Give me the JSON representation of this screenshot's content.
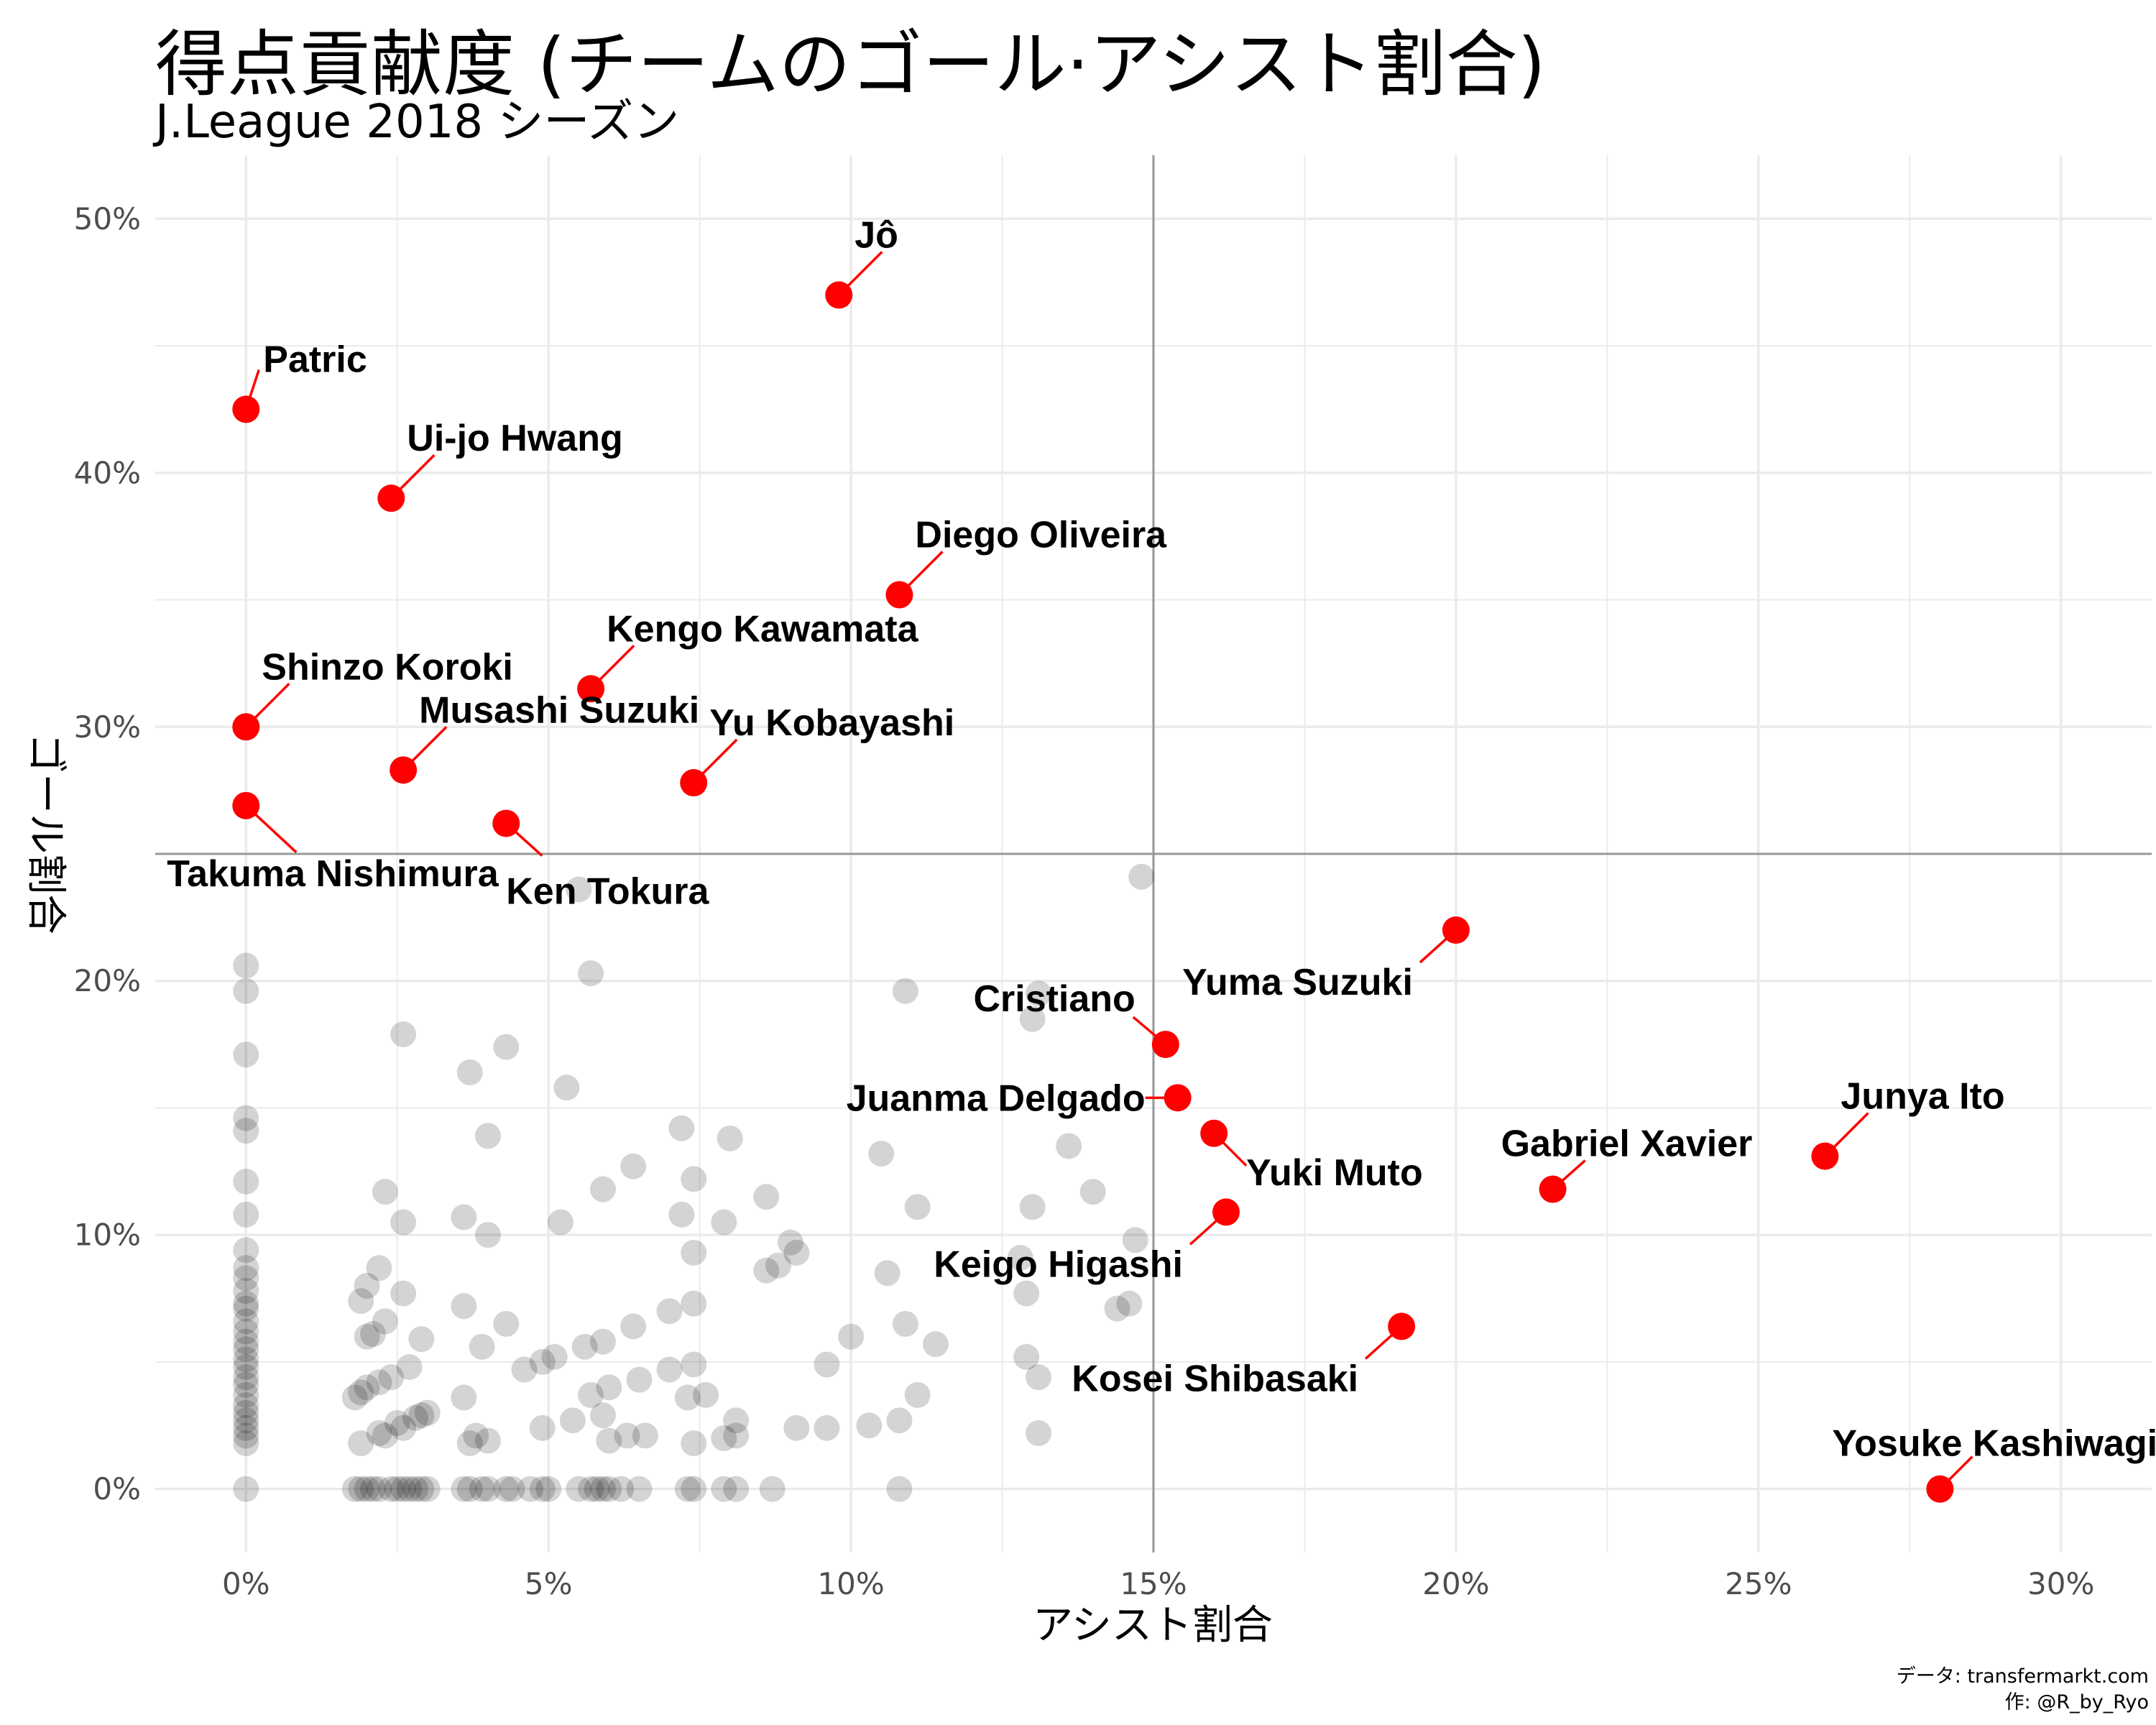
{
  "title": "得点貢献度 (チームのゴール·アシスト割合)",
  "subtitle": "J.League 2018 シーズン",
  "caption": {
    "line1": "データ: transfermarkt.com",
    "line2": "作: @R_by_Ryo"
  },
  "colors": {
    "highlight": "#ff0000",
    "background_points": "#000000",
    "grid": "#ebebeb",
    "reference_line": "#999999"
  },
  "chart_data": {
    "type": "scatter",
    "title": "得点貢献度 (チームのゴール·アシスト割合)",
    "subtitle": "J.League 2018 シーズン",
    "xlabel": "アシスト割合",
    "ylabel": "ゴール割合",
    "xlim": [
      -1.5,
      31.5
    ],
    "ylim": [
      -2.5,
      52.5
    ],
    "x_ticks": [
      0,
      5,
      10,
      15,
      20,
      25,
      30
    ],
    "x_tick_labels": [
      "0%",
      "5%",
      "10%",
      "15%",
      "20%",
      "25%",
      "30%"
    ],
    "y_ticks": [
      0,
      10,
      20,
      30,
      40,
      50
    ],
    "y_tick_labels": [
      "0%",
      "10%",
      "20%",
      "30%",
      "40%",
      "50%"
    ],
    "grid": true,
    "reference_lines": {
      "x": 15,
      "y": 25
    },
    "highlighted": [
      {
        "name": "Jô",
        "x": 9.8,
        "y": 47.0,
        "label_pos": "upper-right"
      },
      {
        "name": "Patric",
        "x": 0.0,
        "y": 42.5,
        "label_pos": "upper-right"
      },
      {
        "name": "Ui-jo Hwang",
        "x": 2.4,
        "y": 39.0,
        "label_pos": "upper-right"
      },
      {
        "name": "Diego Oliveira",
        "x": 10.8,
        "y": 35.2,
        "label_pos": "upper-right"
      },
      {
        "name": "Kengo Kawamata",
        "x": 5.7,
        "y": 31.5,
        "label_pos": "upper-right"
      },
      {
        "name": "Shinzo Koroki",
        "x": 0.0,
        "y": 30.0,
        "label_pos": "upper-right"
      },
      {
        "name": "Musashi Suzuki",
        "x": 2.6,
        "y": 28.3,
        "label_pos": "upper-right"
      },
      {
        "name": "Yu Kobayashi",
        "x": 7.4,
        "y": 27.8,
        "label_pos": "upper-right"
      },
      {
        "name": "Takuma Nishimura",
        "x": 0.0,
        "y": 26.9,
        "label_pos": "lower-right"
      },
      {
        "name": "Ken Tokura",
        "x": 4.3,
        "y": 26.2,
        "label_pos": "lower-right"
      },
      {
        "name": "Yuma Suzuki",
        "x": 20.0,
        "y": 22.0,
        "label_pos": "lower-left"
      },
      {
        "name": "Cristiano",
        "x": 15.2,
        "y": 17.5,
        "label_pos": "upper-left"
      },
      {
        "name": "Juanma Delgado",
        "x": 15.4,
        "y": 15.4,
        "label_pos": "left"
      },
      {
        "name": "Yuki Muto",
        "x": 16.0,
        "y": 14.0,
        "label_pos": "lower-right"
      },
      {
        "name": "Keigo Higashi",
        "x": 16.2,
        "y": 10.9,
        "label_pos": "lower-left"
      },
      {
        "name": "Kosei Shibasaki",
        "x": 19.1,
        "y": 6.4,
        "label_pos": "lower-left"
      },
      {
        "name": "Gabriel Xavier",
        "x": 21.6,
        "y": 11.8,
        "label_pos": "upper-right"
      },
      {
        "name": "Junya Ito",
        "x": 26.1,
        "y": 13.1,
        "label_pos": "upper-right"
      },
      {
        "name": "Yosuke Kashiwagi",
        "x": 28.0,
        "y": 0.0,
        "label_pos": "upper-right"
      }
    ],
    "others": [
      [
        0,
        20.6
      ],
      [
        0,
        19.6
      ],
      [
        0,
        17.1
      ],
      [
        0,
        14.6
      ],
      [
        0,
        14.1
      ],
      [
        0,
        12.1
      ],
      [
        0,
        10.8
      ],
      [
        0,
        9.4
      ],
      [
        0,
        8.7
      ],
      [
        0,
        8.3
      ],
      [
        0,
        7.8
      ],
      [
        0,
        7.3
      ],
      [
        0,
        7.1
      ],
      [
        0,
        6.6
      ],
      [
        0,
        6.2
      ],
      [
        0,
        5.8
      ],
      [
        0,
        5.5
      ],
      [
        0,
        5.1
      ],
      [
        0,
        4.8
      ],
      [
        0,
        4.4
      ],
      [
        0,
        4.1
      ],
      [
        0,
        3.7
      ],
      [
        0,
        3.3
      ],
      [
        0,
        3.0
      ],
      [
        0,
        2.7
      ],
      [
        0,
        2.4
      ],
      [
        0,
        2.1
      ],
      [
        0,
        1.8
      ],
      [
        0,
        0
      ],
      [
        5.5,
        23.6
      ],
      [
        5.7,
        20.3
      ],
      [
        2.6,
        17.9
      ],
      [
        3.7,
        16.4
      ],
      [
        4.3,
        17.4
      ],
      [
        5.3,
        15.8
      ],
      [
        4.0,
        13.9
      ],
      [
        2.3,
        11.7
      ],
      [
        2.6,
        10.5
      ],
      [
        3.6,
        10.7
      ],
      [
        4.0,
        10.0
      ],
      [
        5.2,
        10.5
      ],
      [
        5.9,
        11.8
      ],
      [
        6.4,
        12.7
      ],
      [
        7.2,
        14.2
      ],
      [
        7.4,
        12.2
      ],
      [
        7.2,
        10.8
      ],
      [
        7.9,
        10.5
      ],
      [
        8.0,
        13.8
      ],
      [
        8.6,
        11.5
      ],
      [
        7.4,
        9.3
      ],
      [
        8.6,
        8.6
      ],
      [
        8.8,
        8.8
      ],
      [
        9.1,
        9.3
      ],
      [
        9.0,
        9.7
      ],
      [
        10.5,
        13.2
      ],
      [
        10.9,
        19.6
      ],
      [
        11.1,
        11.1
      ],
      [
        10.6,
        8.5
      ],
      [
        13.0,
        18.5
      ],
      [
        13.1,
        19.5
      ],
      [
        13.6,
        13.5
      ],
      [
        13.0,
        11.1
      ],
      [
        14.0,
        11.7
      ],
      [
        14.8,
        24.1
      ],
      [
        12.8,
        9.1
      ],
      [
        12.9,
        7.7
      ],
      [
        14.7,
        9.8
      ],
      [
        14.4,
        7.1
      ],
      [
        14.6,
        7.3
      ],
      [
        12.9,
        5.2
      ],
      [
        13.1,
        4.4
      ],
      [
        13.1,
        2.2
      ],
      [
        1.9,
        7.4
      ],
      [
        2.0,
        8.0
      ],
      [
        2.2,
        8.7
      ],
      [
        2.6,
        7.7
      ],
      [
        2.0,
        6.0
      ],
      [
        2.1,
        6.1
      ],
      [
        2.3,
        6.6
      ],
      [
        2.9,
        5.9
      ],
      [
        2.7,
        4.8
      ],
      [
        2.4,
        4.4
      ],
      [
        2.2,
        4.2
      ],
      [
        2.0,
        4.0
      ],
      [
        1.9,
        3.8
      ],
      [
        1.8,
        3.6
      ],
      [
        2.3,
        2.1
      ],
      [
        2.6,
        2.4
      ],
      [
        2.5,
        2.6
      ],
      [
        2.8,
        2.8
      ],
      [
        2.9,
        2.9
      ],
      [
        3.0,
        3.0
      ],
      [
        2.2,
        2.2
      ],
      [
        1.9,
        1.8
      ],
      [
        3.6,
        7.2
      ],
      [
        3.9,
        5.6
      ],
      [
        3.6,
        3.6
      ],
      [
        3.7,
        1.8
      ],
      [
        3.8,
        2.1
      ],
      [
        4.0,
        1.9
      ],
      [
        4.3,
        6.5
      ],
      [
        4.6,
        4.7
      ],
      [
        4.9,
        5.0
      ],
      [
        5.1,
        5.2
      ],
      [
        5.6,
        5.6
      ],
      [
        5.9,
        5.8
      ],
      [
        5.7,
        3.7
      ],
      [
        5.4,
        2.7
      ],
      [
        4.9,
        2.4
      ],
      [
        5.9,
        2.9
      ],
      [
        6.0,
        4.0
      ],
      [
        6.0,
        1.9
      ],
      [
        6.5,
        4.3
      ],
      [
        6.4,
        6.4
      ],
      [
        6.6,
        2.1
      ],
      [
        6.3,
        2.1
      ],
      [
        7.0,
        7.0
      ],
      [
        7.4,
        7.3
      ],
      [
        7.0,
        4.7
      ],
      [
        7.4,
        4.9
      ],
      [
        7.3,
        3.6
      ],
      [
        7.6,
        3.7
      ],
      [
        7.4,
        1.8
      ],
      [
        7.9,
        2.0
      ],
      [
        8.1,
        2.7
      ],
      [
        8.1,
        2.1
      ],
      [
        9.1,
        2.4
      ],
      [
        9.6,
        2.4
      ],
      [
        9.6,
        4.9
      ],
      [
        10.0,
        6.0
      ],
      [
        10.3,
        2.5
      ],
      [
        10.8,
        2.7
      ],
      [
        10.9,
        6.5
      ],
      [
        11.1,
        3.7
      ],
      [
        11.4,
        5.7
      ],
      [
        1.8,
        0
      ],
      [
        1.9,
        0
      ],
      [
        2.0,
        0
      ],
      [
        2.1,
        0
      ],
      [
        2.2,
        0
      ],
      [
        2.4,
        0
      ],
      [
        2.5,
        0
      ],
      [
        2.6,
        0
      ],
      [
        2.7,
        0
      ],
      [
        2.8,
        0
      ],
      [
        2.9,
        0
      ],
      [
        3.0,
        0
      ],
      [
        3.6,
        0
      ],
      [
        3.7,
        0
      ],
      [
        3.9,
        0
      ],
      [
        4.0,
        0
      ],
      [
        4.3,
        0
      ],
      [
        4.4,
        0
      ],
      [
        4.7,
        0
      ],
      [
        4.9,
        0
      ],
      [
        5.0,
        0
      ],
      [
        5.5,
        0
      ],
      [
        5.7,
        0
      ],
      [
        5.8,
        0
      ],
      [
        5.9,
        0
      ],
      [
        6.0,
        0
      ],
      [
        6.2,
        0
      ],
      [
        6.5,
        0
      ],
      [
        7.3,
        0
      ],
      [
        7.4,
        0
      ],
      [
        7.9,
        0
      ],
      [
        8.1,
        0
      ],
      [
        8.7,
        0
      ],
      [
        10.8,
        0
      ]
    ]
  }
}
